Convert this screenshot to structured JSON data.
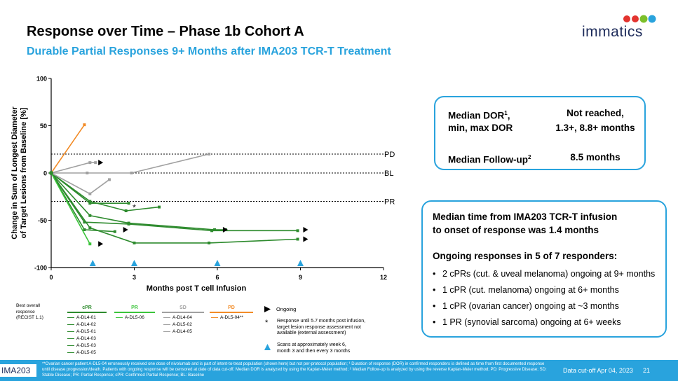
{
  "slide": {
    "title": "Response over Time – Phase 1b Cohort A",
    "subtitle": "Durable Partial Responses 9+ Months after IMA203 TCR-T Treatment",
    "logo": "immatics"
  },
  "colors": {
    "accent": "#29a3dd",
    "cpr": "#2e8b2e",
    "pr": "#3cc43c",
    "sd": "#a0a0a0",
    "pd": "#f28c28",
    "navy": "#1d2b5a"
  },
  "chart_data": {
    "type": "line",
    "ylabel": "Change in Sum of Longest Diameter of Target Lesions from Baseline [%]",
    "xlabel": "Months post T cell Infusion",
    "xlim": [
      0,
      12
    ],
    "ylim": [
      -100,
      100
    ],
    "xticks": [
      "0",
      "3",
      "6",
      "9",
      "12"
    ],
    "yticks": [
      "100",
      "50",
      "0",
      "-50",
      "-100"
    ],
    "reference_lines": [
      {
        "label": "PD",
        "y": 20
      },
      {
        "label": "BL",
        "y": 0
      },
      {
        "label": "PR",
        "y": -30
      }
    ],
    "series": [
      {
        "name": "A-DL4-01",
        "group": "cPR",
        "x": [
          0,
          1.4,
          2.8
        ],
        "y": [
          0,
          -32,
          -32
        ]
      },
      {
        "name": "A-DL4-02",
        "group": "cPR",
        "x": [
          0,
          1.4,
          2.7,
          3.9
        ],
        "y": [
          0,
          -30,
          -40,
          -36
        ]
      },
      {
        "name": "A-DL5-01",
        "group": "cPR",
        "x": [
          0,
          1.4,
          2.8,
          5.9,
          6.3
        ],
        "y": [
          0,
          -45,
          -53,
          -60,
          -60
        ]
      },
      {
        "name": "A-DL4-03",
        "group": "cPR",
        "x": [
          0,
          1.2,
          2.8,
          5.8,
          8.9
        ],
        "y": [
          0,
          -52,
          -54,
          -61,
          -61
        ]
      },
      {
        "name": "A-DL5-03",
        "group": "cPR",
        "x": [
          0,
          1.4,
          3.0,
          5.7,
          8.9
        ],
        "y": [
          0,
          -58,
          -74,
          -74,
          -70
        ]
      },
      {
        "name": "A-DL5-05",
        "group": "cPR",
        "x": [
          0,
          1.2,
          2.3
        ],
        "y": [
          0,
          -60,
          -62
        ]
      },
      {
        "name": "A-DL5-06",
        "group": "PR",
        "x": [
          0,
          1.4
        ],
        "y": [
          0,
          -75
        ]
      },
      {
        "name": "A-DL4-04",
        "group": "SD",
        "x": [
          0,
          1.3,
          2.9,
          5.7
        ],
        "y": [
          0,
          0,
          0,
          20
        ]
      },
      {
        "name": "A-DL5-02",
        "group": "SD",
        "x": [
          0,
          1.4,
          1.6
        ],
        "y": [
          0,
          11,
          11
        ]
      },
      {
        "name": "A-DL4-05",
        "group": "SD",
        "x": [
          0,
          1.4,
          2.1
        ],
        "y": [
          0,
          -22,
          -7
        ]
      },
      {
        "name": "A-DL5-04**",
        "group": "PD",
        "x": [
          0,
          1.2
        ],
        "y": [
          0,
          51
        ]
      }
    ],
    "ongoing_markers": [
      {
        "x": 1.7,
        "y": 11
      },
      {
        "x": 2.6,
        "y": -60
      },
      {
        "x": 6.2,
        "y": -60
      },
      {
        "x": 9.1,
        "y": -60
      },
      {
        "x": 9.1,
        "y": -70
      },
      {
        "x": 1.7,
        "y": -75
      }
    ],
    "asterisk_marker": {
      "x": 3.0,
      "y": -35,
      "label": "*"
    },
    "scan_markers_x": [
      1.5,
      3,
      6,
      9
    ]
  },
  "box1": {
    "dor_label_line1": "Median DOR",
    "dor_sup": "1",
    "dor_label_line2": "min, max DOR",
    "dor_value_line1": "Not reached,",
    "dor_value_line2": "1.3+, 8.8+ months",
    "followup_label": "Median Follow-up",
    "followup_sup": "2",
    "followup_value": "8.5 months"
  },
  "box2": {
    "line1": "Median time from IMA203 TCR-T infusion",
    "line2": "to onset of response was 1.4 months",
    "heading": "Ongoing responses in 5 of 7 responders:",
    "bullets": [
      "2 cPRs (cut. & uveal melanoma) ongoing at 9+ months",
      "1 cPR (cut. melanoma) ongoing at 6+ months",
      "1 cPR (ovarian cancer) ongoing at ~3 months",
      "1 PR (synovial sarcoma) ongoing at 6+ weeks"
    ]
  },
  "legend": {
    "title_lines": [
      "Best overall",
      "response",
      "(RECIST 1.1)"
    ],
    "cpr": {
      "head": "cPR",
      "items": [
        "A-DL4-01",
        "A-DL4-02",
        "A-DL5-01",
        "A-DL4-03",
        "A-DL5-03",
        "A-DL5-05"
      ]
    },
    "pr": {
      "head": "PR",
      "items": [
        "A-DL5-06"
      ]
    },
    "sd": {
      "head": "SD",
      "items": [
        "A-DL4-04",
        "A-DL5-02",
        "A-DL4-05"
      ]
    },
    "pd": {
      "head": "PD",
      "items": [
        "A-DL5-04"
      ],
      "suffix": "**"
    },
    "ongoing_label": "Ongoing",
    "asterisk_note": [
      "Response until 5.7 months post infusion,",
      "target lesion response assessment not",
      "available (external assessment)"
    ],
    "scan_note": [
      "Scans at approximately week 6,",
      "month 3 and then every 3 months"
    ]
  },
  "footer": {
    "tag": "IMA203",
    "note": "**Ovarian cancer patient A-DL5-04 erroneously received one dose of nivolumab and is part of intent-to-treat population (shown here) but not per-protocol population; ¹ Duration of response (DOR) in confirmed responders is defined as time from first documented response until disease progression/death. Patients with ongoing response will be censored at date of data cut-off. Median DOR is analyzed by using the Kaplan-Meier method; ² Median Follow-up is analyzed by using the reverse Kaplan-Meier method; PD: Progressive Disease; SD: Stable Disease; PR: Partial Response; cPR: Confirmed Partial Response; BL: Baseline",
    "date": "Data cut-off Apr 04, 2023",
    "page": "21"
  }
}
